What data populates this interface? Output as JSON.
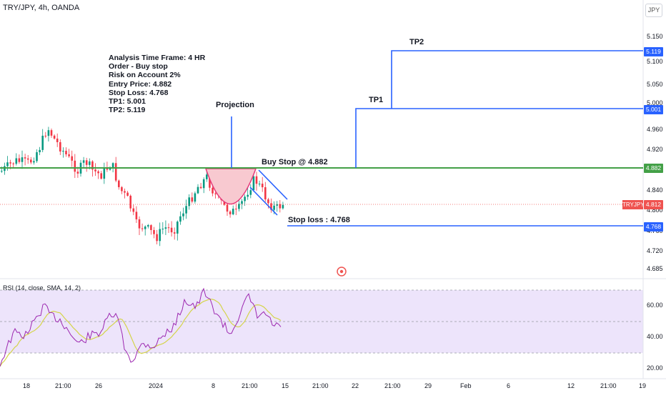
{
  "header": {
    "symbol": "TRY/JPY, 4h, OANDA",
    "currency": "JPY"
  },
  "analysis_lines": [
    "Analysis Time Frame: 4 HR",
    "Order - Buy stop",
    "Risk on Account 2%",
    "Entry Price: 4.882",
    "Stop Loss: 4.768",
    "TP1: 5.001",
    "TP2: 5.119"
  ],
  "annotations": {
    "projection": "Projection",
    "buy_stop": "Buy Stop @ 4.882",
    "stop_loss": "Stop loss : 4.768",
    "tp1": "TP1",
    "tp2": "TP2"
  },
  "price_axis": {
    "ticks": [
      "5.150",
      "5.100",
      "5.050",
      "5.000",
      "4.960",
      "4.920",
      "4.840",
      "4.800",
      "4.760",
      "4.720",
      "4.685"
    ]
  },
  "price_badges": {
    "tp2": "5.119",
    "tp1": "5.001",
    "entry": "4.882",
    "last": "4.812",
    "stop": "4.768",
    "symbol": "TRYJPY"
  },
  "rsi": {
    "label": "RSI (14, close, SMA, 14, 2)",
    "ticks": [
      "60.00",
      "40.00",
      "20.00"
    ]
  },
  "time_axis": {
    "labels": [
      "18",
      "21:00",
      "26",
      "2024",
      "8",
      "21:00",
      "15",
      "21:00",
      "22",
      "21:00",
      "29",
      "Feb",
      "6",
      "12",
      "21:00",
      "19"
    ]
  },
  "colors": {
    "up": "#089981",
    "down": "#f23645",
    "blue_line": "#2962ff",
    "green_line": "#43a047",
    "rsi_line": "#9c27b0",
    "rsi_ma": "#d4d44a",
    "rsi_band": "#ede4fb",
    "cup_fill": "#f8c9d0",
    "cup_stroke": "#e6397a"
  },
  "icons": {
    "target": "target-icon"
  }
}
